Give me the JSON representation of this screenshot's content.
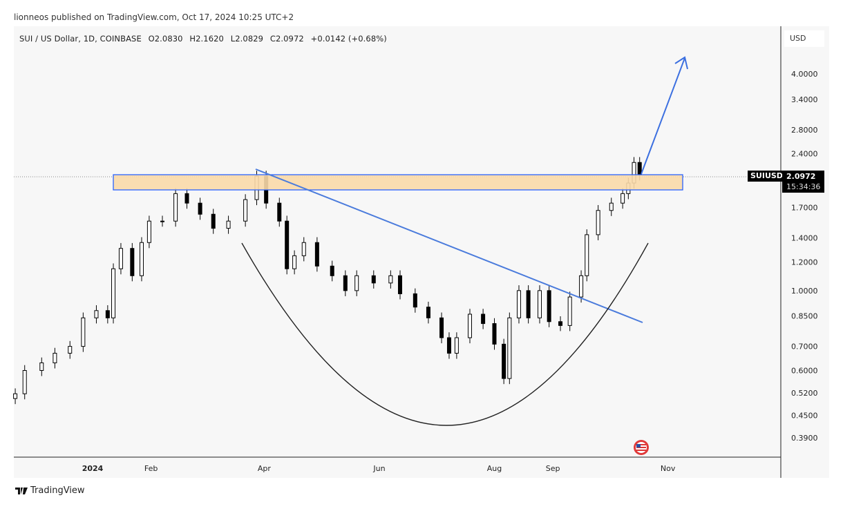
{
  "publisher_line": "lionneos published on TradingView.com, Oct 17, 2024 10:25 UTC+2",
  "legend": {
    "symbol": "SUI / US Dollar, 1D, COINBASE",
    "open": "O2.0830",
    "high": "H2.1620",
    "low": "L2.0829",
    "close": "C2.0972",
    "change": "+0.0142 (+0.68%)"
  },
  "currency_label": "USD",
  "price_tag": {
    "symbol": "SUIUSD",
    "price": "2.0972",
    "countdown": "15:34:36"
  },
  "brand": "TradingView",
  "colors": {
    "up": "#000000",
    "down": "#000000",
    "zone_fill": "#f9d9a8",
    "zone_border": "#2962ff",
    "trendline": "#4a7bdc",
    "arrow": "#3b6fe0",
    "curve": "#222222"
  },
  "icons": {
    "event_flag": "us-flag-icon",
    "logo": "tradingview-logo-icon"
  },
  "chart_data": {
    "type": "candlestick",
    "y_scale": "log",
    "ylim": [
      0.37,
      4.6
    ],
    "y_ticks": [
      "4.0000",
      "3.4000",
      "2.8000",
      "2.4000",
      "1.7000",
      "1.4000",
      "1.2000",
      "1.0000",
      "0.8500",
      "0.7000",
      "0.6000",
      "0.5200",
      "0.4500",
      "0.3900"
    ],
    "x_ticks": [
      {
        "label": "2024",
        "date": "2024-01-01",
        "bold": true
      },
      {
        "label": "Feb",
        "date": "2024-02-01"
      },
      {
        "label": "Apr",
        "date": "2024-04-01"
      },
      {
        "label": "Jun",
        "date": "2024-06-01"
      },
      {
        "label": "Aug",
        "date": "2024-08-01"
      },
      {
        "label": "Sep",
        "date": "2024-09-01"
      },
      {
        "label": "Nov",
        "date": "2024-11-01"
      }
    ],
    "closes": [
      [
        "2023-11-21",
        0.517
      ],
      [
        "2023-11-26",
        0.6
      ],
      [
        "2023-12-05",
        0.63
      ],
      [
        "2023-12-12",
        0.67
      ],
      [
        "2023-12-20",
        0.7
      ],
      [
        "2023-12-27",
        0.84
      ],
      [
        "2024-01-03",
        0.88
      ],
      [
        "2024-01-09",
        0.84
      ],
      [
        "2024-01-12",
        1.15
      ],
      [
        "2024-01-16",
        1.31
      ],
      [
        "2024-01-22",
        1.1
      ],
      [
        "2024-01-27",
        1.36
      ],
      [
        "2024-01-31",
        1.56
      ],
      [
        "2024-02-07",
        1.56
      ],
      [
        "2024-02-14",
        1.86
      ],
      [
        "2024-02-20",
        1.75
      ],
      [
        "2024-02-27",
        1.63
      ],
      [
        "2024-03-05",
        1.49
      ],
      [
        "2024-03-13",
        1.56
      ],
      [
        "2024-03-22",
        1.79
      ],
      [
        "2024-03-28",
        2.08
      ],
      [
        "2024-04-02",
        1.75
      ],
      [
        "2024-04-09",
        1.56
      ],
      [
        "2024-04-13",
        1.15
      ],
      [
        "2024-04-17",
        1.25
      ],
      [
        "2024-04-22",
        1.36
      ],
      [
        "2024-04-29",
        1.17
      ],
      [
        "2024-05-07",
        1.1
      ],
      [
        "2024-05-14",
        1.0
      ],
      [
        "2024-05-20",
        1.1
      ],
      [
        "2024-05-29",
        1.05
      ],
      [
        "2024-06-07",
        1.1
      ],
      [
        "2024-06-12",
        0.98
      ],
      [
        "2024-06-20",
        0.9
      ],
      [
        "2024-06-27",
        0.84
      ],
      [
        "2024-07-04",
        0.74
      ],
      [
        "2024-07-08",
        0.67
      ],
      [
        "2024-07-12",
        0.74
      ],
      [
        "2024-07-19",
        0.86
      ],
      [
        "2024-07-26",
        0.81
      ],
      [
        "2024-08-01",
        0.71
      ],
      [
        "2024-08-06",
        0.57
      ],
      [
        "2024-08-09",
        0.84
      ],
      [
        "2024-08-14",
        1.0
      ],
      [
        "2024-08-19",
        0.84
      ],
      [
        "2024-08-25",
        1.0
      ],
      [
        "2024-08-30",
        0.82
      ],
      [
        "2024-09-05",
        0.8
      ],
      [
        "2024-09-10",
        0.96
      ],
      [
        "2024-09-16",
        1.1
      ],
      [
        "2024-09-19",
        1.43
      ],
      [
        "2024-09-25",
        1.67
      ],
      [
        "2024-10-02",
        1.75
      ],
      [
        "2024-10-08",
        1.86
      ],
      [
        "2024-10-11",
        1.99
      ],
      [
        "2024-10-14",
        2.27
      ],
      [
        "2024-10-17",
        2.0972
      ]
    ],
    "last_price": 2.0972
  }
}
